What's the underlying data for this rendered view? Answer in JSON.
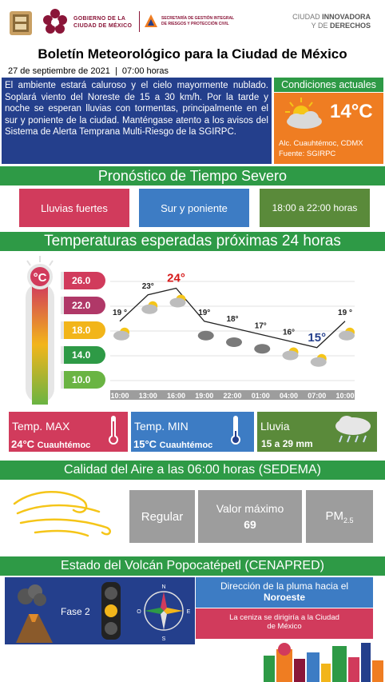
{
  "header": {
    "gov_line1": "GOBIERNO DE LA",
    "gov_line2": "CIUDAD DE MÉXICO",
    "sgirpc_line1": "SECRETARÍA DE GESTIÓN INTEGRAL",
    "sgirpc_line2": "DE RIESGOS Y PROTECCIÓN CIVIL",
    "city_line1_a": "CIUDAD ",
    "city_line1_b": "INNOVADORA",
    "city_line2_a": "Y DE ",
    "city_line2_b": "DERECHOS"
  },
  "title": "Boletín Meteorológico para la Ciudad de México",
  "date": "27 de septiembre de 2021",
  "time": "07:00 horas",
  "description": "El ambiente estará caluroso y el cielo mayormente nublado. Soplará viento del Noreste de 15 a 30 km/h. Por la tarde y noche se esperan lluvias con tormentas, principalmente en el sur y poniente de la ciudad. Manténgase atento a los avisos del Sistema de Alerta Temprana Multi-Riesgo de la SGIRPC.",
  "conditions": {
    "title": "Condiciones actuales",
    "temp": "14°C",
    "location": "Alc. Cuauhtémoc, CDMX",
    "source": "Fuente: SGIRPC"
  },
  "severe": {
    "title": "Pronóstico de Tiempo Severo",
    "tag1": "Lluvias fuertes",
    "tag2": "Sur y poniente",
    "tag3": "18:00 a 22:00 horas",
    "colors": {
      "tag1": "#d13b5c",
      "tag2": "#3d7cc4",
      "tag3": "#5a8a3a"
    }
  },
  "temps": {
    "title": "Temperaturas esperadas próximas 24 horas",
    "thermo_scale": [
      "26.0",
      "22.0",
      "18.0",
      "14.0",
      "10.0"
    ],
    "thermo_colors": [
      "#d13b5c",
      "#b03868",
      "#f2b51a",
      "#2e9a46",
      "#6ab443"
    ]
  },
  "chart_data": {
    "type": "line",
    "x": [
      "10:00",
      "13:00",
      "16:00",
      "19:00",
      "22:00",
      "01:00",
      "04:00",
      "07:00",
      "10:00"
    ],
    "y": [
      19,
      23,
      24,
      19,
      18,
      17,
      16,
      15,
      19
    ],
    "labels": [
      "19 °",
      "23°",
      "24°",
      "19°",
      "18°",
      "17°",
      "16°",
      "15°",
      "19 °"
    ],
    "ylim": [
      10,
      26
    ]
  },
  "summary": {
    "max_label": "Temp. MAX",
    "max_value": "24°C",
    "max_place": "Cuauhtémoc",
    "min_label": "Temp. MIN",
    "min_value": "15°C",
    "min_place": "Cuauhtémoc",
    "rain_label": "Lluvia",
    "rain_value": "15 a 29 mm"
  },
  "air": {
    "title": "Calidad del Aire a las 06:00 horas (SEDEMA)",
    "quality": "Regular",
    "max_label": "Valor máximo",
    "max_value": "69",
    "pollutant": "PM",
    "pollutant_sub": "2.5"
  },
  "volcano": {
    "title": "Estado del Volcán Popocatépetl (CENAPRED)",
    "phase": "Fase 2",
    "plume_label": "Dirección de la pluma hacia el",
    "plume_dir": "Noroeste",
    "ash_text": "La ceniza se dirigiría a la Ciudad de México",
    "compass": {
      "n": "N",
      "s": "S",
      "e": "E",
      "o": "O"
    }
  }
}
